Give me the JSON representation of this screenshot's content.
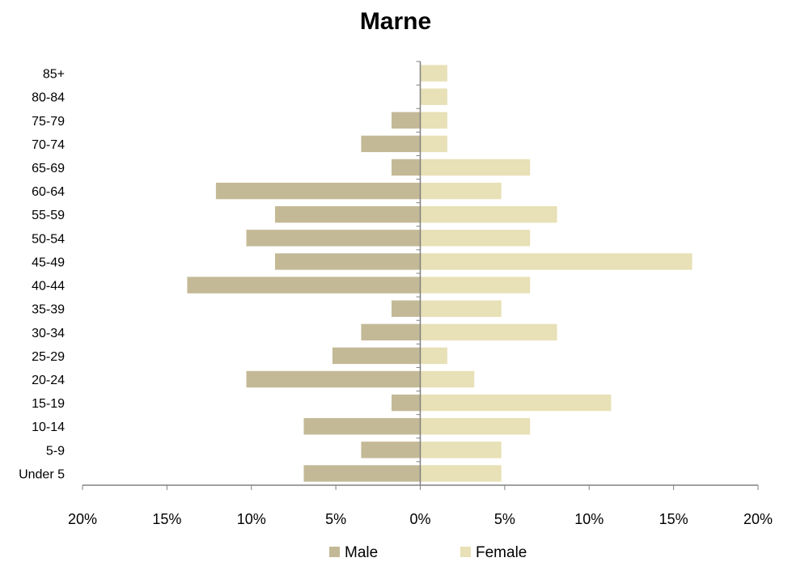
{
  "chart_data": {
    "type": "bar",
    "orientation": "horizontal",
    "title": "Marne",
    "xlabel": "",
    "ylabel": "",
    "categories": [
      "Under 5",
      "5-9",
      "10-14",
      "15-19",
      "20-24",
      "25-29",
      "30-34",
      "35-39",
      "40-44",
      "45-49",
      "50-54",
      "55-59",
      "60-64",
      "65-69",
      "70-74",
      "75-79",
      "80-84",
      "85+"
    ],
    "series": [
      {
        "name": "Male",
        "color": "#c4b996",
        "values": [
          -6.9,
          -3.5,
          -6.9,
          -1.7,
          -10.3,
          -5.2,
          -3.5,
          -1.7,
          -13.8,
          -8.6,
          -10.3,
          -8.6,
          -12.1,
          -1.7,
          -3.5,
          -1.7,
          0,
          0
        ]
      },
      {
        "name": "Female",
        "color": "#e8e0b6",
        "values": [
          4.8,
          4.8,
          6.5,
          11.3,
          3.2,
          1.6,
          8.1,
          4.8,
          6.5,
          16.1,
          6.5,
          8.1,
          4.8,
          6.5,
          1.6,
          1.6,
          1.6,
          1.6
        ]
      }
    ],
    "xlim": [
      -20,
      20
    ],
    "x_ticks": [
      -20,
      -15,
      -10,
      -5,
      0,
      5,
      10,
      15,
      20
    ],
    "x_tick_labels": [
      "20%",
      "15%",
      "10%",
      "5%",
      "0%",
      "5%",
      "10%",
      "15%",
      "20%"
    ],
    "grid": false,
    "legend_position": "bottom"
  }
}
